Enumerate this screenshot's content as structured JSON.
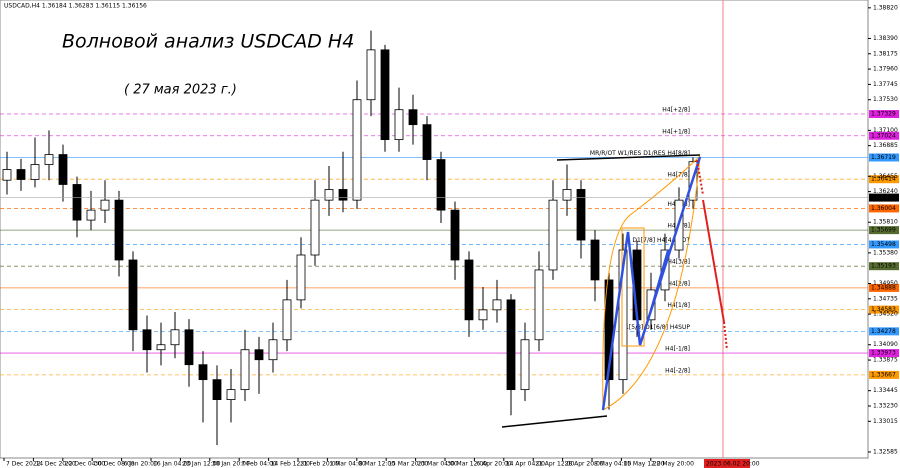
{
  "chart_data": {
    "type": "candlestick",
    "header": "USDCAD,H4  1.36184 1.36283 1.36115 1.36156",
    "title": "Волновой анализ USDCAD H4",
    "subtitle": "( 27 мая 2023 г.)",
    "open": [
      1.364,
      1.3655,
      1.3641,
      1.3662,
      1.3676,
      1.3634,
      1.3584,
      1.3598,
      1.3612,
      1.3528,
      1.343,
      1.3402,
      1.3409,
      1.343,
      1.3381,
      1.336,
      1.3332,
      1.3346,
      1.3402,
      1.3388,
      1.3416,
      1.3472,
      1.3535,
      1.3612,
      1.3627,
      1.3612,
      1.3753,
      1.3823,
      1.3697,
      1.3739,
      1.3718,
      1.3669,
      1.3598,
      1.3528,
      1.3444,
      1.3458,
      1.3472,
      1.3346,
      1.3416,
      1.3514,
      1.3612,
      1.3627,
      1.3556,
      1.35,
      1.336,
      1.3542,
      1.3444,
      1.3486,
      1.3542,
      1.3612
    ],
    "high": [
      1.368,
      1.367,
      1.37,
      1.371,
      1.369,
      1.3645,
      1.3625,
      1.364,
      1.3625,
      1.354,
      1.345,
      1.344,
      1.3455,
      1.3445,
      1.34,
      1.338,
      1.3375,
      1.343,
      1.342,
      1.344,
      1.35,
      1.356,
      1.364,
      1.366,
      1.368,
      1.378,
      1.385,
      1.383,
      1.377,
      1.376,
      1.373,
      1.368,
      1.361,
      1.354,
      1.349,
      1.35,
      1.348,
      1.344,
      1.354,
      1.364,
      1.3662,
      1.364,
      1.357,
      1.351,
      1.3565,
      1.3555,
      1.351,
      1.3565,
      1.363,
      1.3672
    ],
    "low": [
      1.362,
      1.3625,
      1.363,
      1.364,
      1.361,
      1.356,
      1.357,
      1.358,
      1.3505,
      1.34,
      1.337,
      1.338,
      1.339,
      1.335,
      1.33,
      1.3268,
      1.33,
      1.333,
      1.334,
      1.337,
      1.34,
      1.346,
      1.352,
      1.359,
      1.3595,
      1.36,
      1.373,
      1.368,
      1.368,
      1.369,
      1.364,
      1.358,
      1.35,
      1.342,
      1.343,
      1.344,
      1.331,
      1.333,
      1.34,
      1.35,
      1.359,
      1.353,
      1.347,
      1.3318,
      1.334,
      1.342,
      1.343,
      1.347,
      1.353,
      1.36
    ],
    "close": [
      1.3655,
      1.3641,
      1.3662,
      1.3676,
      1.3634,
      1.3584,
      1.3598,
      1.3612,
      1.3528,
      1.343,
      1.3402,
      1.3409,
      1.343,
      1.3381,
      1.336,
      1.3332,
      1.3346,
      1.3402,
      1.3388,
      1.3416,
      1.3472,
      1.3535,
      1.3612,
      1.3627,
      1.3612,
      1.3753,
      1.3823,
      1.3697,
      1.3739,
      1.3718,
      1.3669,
      1.3598,
      1.3528,
      1.3444,
      1.3458,
      1.3472,
      1.3346,
      1.3416,
      1.3514,
      1.3612,
      1.3627,
      1.3556,
      1.35,
      1.336,
      1.3542,
      1.3444,
      1.3486,
      1.3542,
      1.3612,
      1.3666
    ],
    "x_labels": [
      "7 Dec 2022",
      "14 Dec 20:00",
      "22 Dec 04:00",
      "30 Dec 08:00",
      "6 Jan 20:00",
      "16 Jan 04:00",
      "23 Jan 12:00",
      "30 Jan 20:00",
      "7 Feb 04:00",
      "14 Feb 12:00",
      "21 Feb 20:00",
      "1 Mar 04:00",
      "8 Mar 12:00",
      "15 Mar 20:00",
      "23 Mar 04:00",
      "30 Mar 12:00",
      "6 Apr 20:00",
      "14 Apr 04:00",
      "21 Apr 12:00",
      "28 Apr 20:00",
      "8 May 04:00",
      "15 May 12:00",
      "22 May 20:00"
    ],
    "future_label": "2023.06.02 20:00",
    "ylim": [
      1.325,
      1.3893
    ],
    "yticks": [
      {
        "value": 1.3882,
        "label": "1.38820"
      },
      {
        "value": 1.3839,
        "label": "1.38390"
      },
      {
        "value": 1.38175,
        "label": "1.38175"
      },
      {
        "value": 1.3796,
        "label": "1.37960"
      },
      {
        "value": 1.37745,
        "label": "1.37745"
      },
      {
        "value": 1.3753,
        "label": "1.37530"
      },
      {
        "value": 1.371,
        "label": "1.37100"
      },
      {
        "value": 1.36885,
        "label": "1.36885"
      },
      {
        "value": 1.36455,
        "label": "1.36455"
      },
      {
        "value": 1.3624,
        "label": "1.36240"
      },
      {
        "value": 1.3581,
        "label": "1.35810"
      },
      {
        "value": 1.3538,
        "label": "1.35380"
      },
      {
        "value": 1.3495,
        "label": "1.34950"
      },
      {
        "value": 1.34735,
        "label": "1.34735"
      },
      {
        "value": 1.3452,
        "label": "1.34520"
      },
      {
        "value": 1.3409,
        "label": "1.34090"
      },
      {
        "value": 1.33875,
        "label": "1.33875"
      },
      {
        "value": 1.33445,
        "label": "1.33445"
      },
      {
        "value": 1.3323,
        "label": "1.33230"
      },
      {
        "value": 1.33015,
        "label": "1.33015"
      },
      {
        "value": 1.32585,
        "label": "1.32585"
      }
    ],
    "levels": [
      {
        "name": "H4[+2/8]",
        "value": 1.37329,
        "label": "1.37329",
        "color": "#e020e0"
      },
      {
        "name": "H4[+1/8]",
        "value": 1.37024,
        "label": "1.37024",
        "color": "#e020e0"
      },
      {
        "name": "MR/R/OT W1/RES D1/RES H4[8/8]",
        "value": 1.36719,
        "label": "1.36719",
        "color": "#3399ff"
      },
      {
        "name": "H4[7/8]",
        "value": 1.36414,
        "label": "1.36414",
        "color": "#ff9900"
      },
      {
        "name": "H4[6/8]",
        "value": 1.36004,
        "label": "1.36004",
        "color": "#ff6600"
      },
      {
        "name": "H4[5/8]",
        "value": 1.35699,
        "label": "1.35699",
        "color": "#556b2f"
      },
      {
        "name": "D1[7/8] H4[4/8] OT",
        "value": 1.35498,
        "label": "1.35498",
        "color": "#3399ff"
      },
      {
        "name": "H4[3/8]",
        "value": 1.35193,
        "label": "1.35193",
        "color": "#556b2f"
      },
      {
        "name": "H4[2/8]",
        "value": 1.34888,
        "label": "1.34888",
        "color": "#ff6600"
      },
      {
        "name": "H4[1/8]",
        "value": 1.34583,
        "label": "1.34583",
        "color": "#ff9900"
      },
      {
        "name": "W1[5/8] D1[6/8] H4SUP",
        "value": 1.34278,
        "label": "1.34278",
        "color": "#3399ff"
      },
      {
        "name": "H4[-1/8]",
        "value": 1.33973,
        "label": "1.33973",
        "color": "#e020e0"
      },
      {
        "name": "H4[-2/8]",
        "value": 1.33667,
        "label": "1.33667",
        "color": "#ff9900"
      }
    ],
    "current_price": {
      "value": 1.36156,
      "label": "1.36156"
    }
  }
}
